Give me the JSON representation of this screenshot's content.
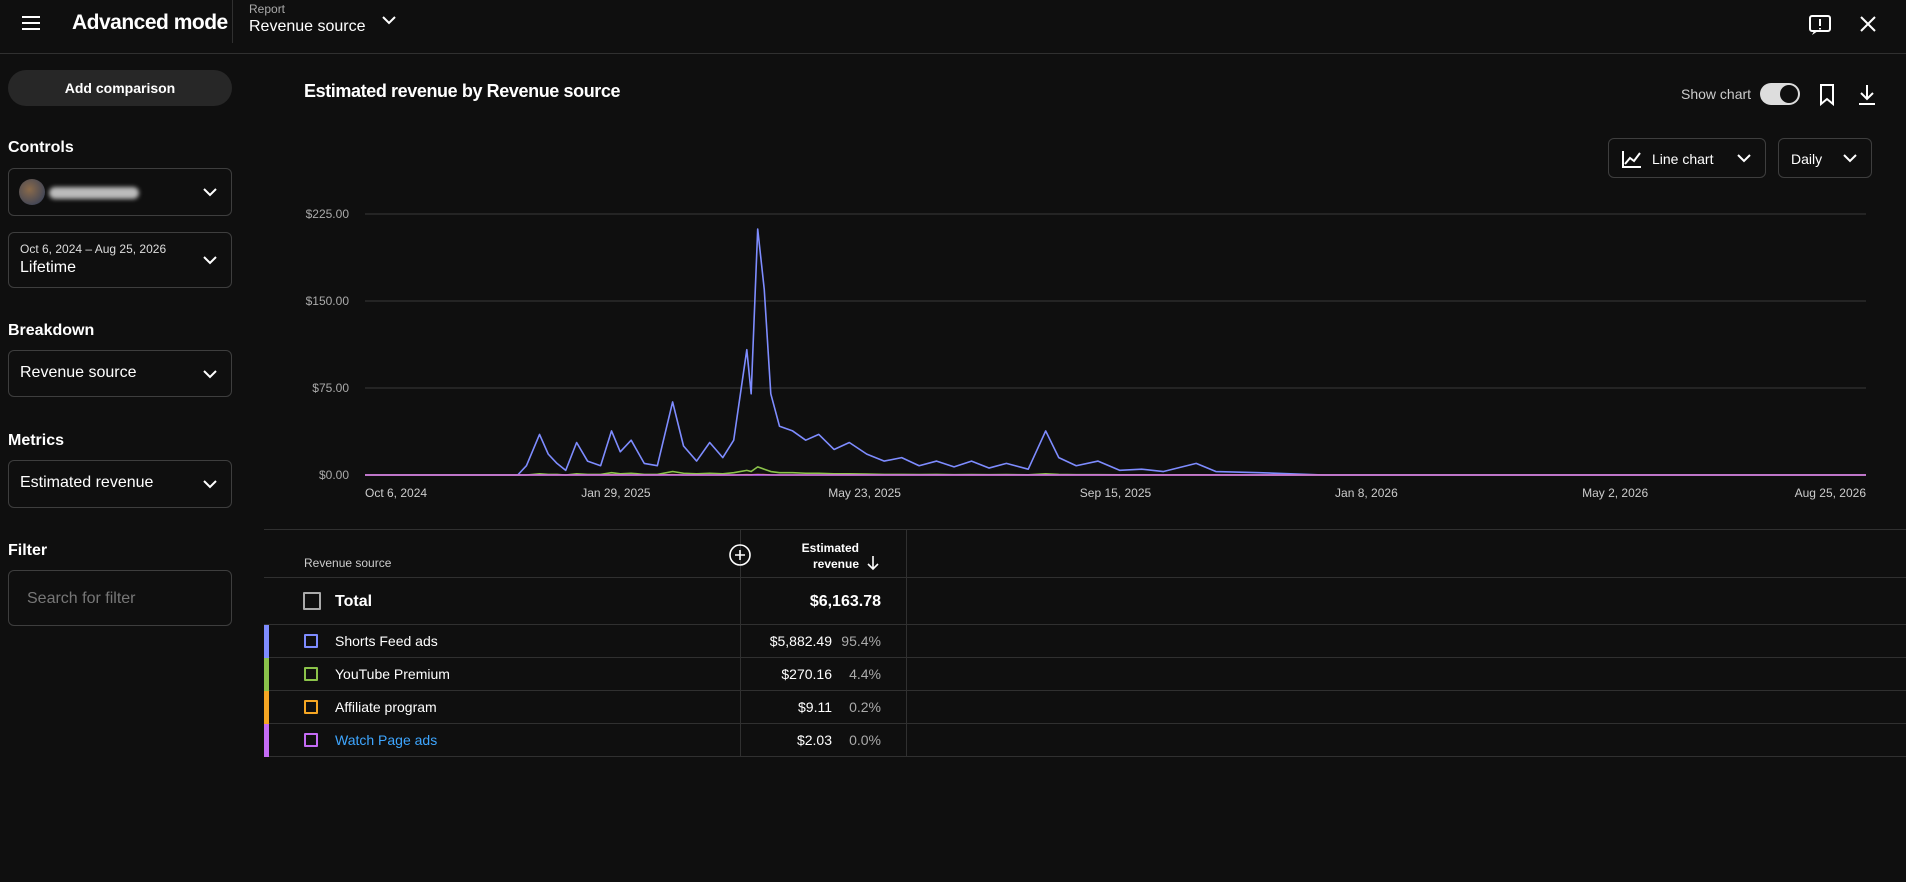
{
  "header": {
    "title": "Advanced mode",
    "report_label": "Report",
    "report": "Revenue source"
  },
  "sidebar": {
    "add_comparison": "Add comparison",
    "controls_label": "Controls",
    "date_range": "Oct 6, 2024 – Aug 25, 2026",
    "date_preset": "Lifetime",
    "breakdown_label": "Breakdown",
    "breakdown": "Revenue source",
    "metrics_label": "Metrics",
    "metric": "Estimated revenue",
    "filter_label": "Filter",
    "filter_placeholder": "Search for filter"
  },
  "toolbar": {
    "show_chart": "Show chart",
    "chart_type": "Line chart",
    "interval": "Daily"
  },
  "chart_data": {
    "type": "line",
    "title": "Estimated revenue by Revenue source",
    "x": [
      "2024-10-06",
      "2024-12-15",
      "2024-12-19",
      "2024-12-25",
      "2024-12-29",
      "2025-01-02",
      "2025-01-06",
      "2025-01-11",
      "2025-01-16",
      "2025-01-22",
      "2025-01-27",
      "2025-01-31",
      "2025-02-05",
      "2025-02-11",
      "2025-02-17",
      "2025-02-24",
      "2025-03-01",
      "2025-03-07",
      "2025-03-13",
      "2025-03-19",
      "2025-03-24",
      "2025-03-30",
      "2025-04-01",
      "2025-04-04",
      "2025-04-07",
      "2025-04-10",
      "2025-04-14",
      "2025-04-20",
      "2025-04-26",
      "2025-05-02",
      "2025-05-09",
      "2025-05-16",
      "2025-05-24",
      "2025-06-01",
      "2025-06-09",
      "2025-06-17",
      "2025-06-25",
      "2025-07-03",
      "2025-07-11",
      "2025-07-19",
      "2025-07-27",
      "2025-08-06",
      "2025-08-14",
      "2025-08-20",
      "2025-08-28",
      "2025-09-07",
      "2025-09-17",
      "2025-09-27",
      "2025-10-07",
      "2025-10-22",
      "2025-10-31",
      "2025-11-20",
      "2025-12-20",
      "2026-08-25"
    ],
    "series": [
      {
        "name": "Shorts Feed ads",
        "color": "#7e8cff",
        "values": [
          0,
          0,
          8,
          35,
          18,
          10,
          4,
          28,
          12,
          8,
          38,
          20,
          30,
          10,
          8,
          63,
          25,
          12,
          28,
          15,
          30,
          108,
          70,
          212,
          160,
          70,
          42,
          38,
          30,
          35,
          22,
          28,
          18,
          12,
          15,
          8,
          12,
          7,
          12,
          6,
          10,
          5,
          38,
          15,
          8,
          12,
          4,
          5,
          3,
          10,
          3,
          2,
          0,
          0
        ]
      },
      {
        "name": "YouTube Premium",
        "color": "#8bc34a",
        "values": [
          0,
          0,
          0,
          1,
          0.5,
          0.5,
          0,
          1,
          0.5,
          0.5,
          2,
          1,
          1.5,
          0.5,
          0.5,
          3,
          1.5,
          1,
          1.5,
          1,
          2,
          4,
          3,
          7,
          5,
          3,
          2,
          2,
          1.5,
          1.5,
          1,
          1,
          0.8,
          0.5,
          0.5,
          0.4,
          0.5,
          0.3,
          0.4,
          0.3,
          0.4,
          0.2,
          1,
          0.5,
          0.3,
          0.3,
          0.2,
          0.2,
          0.1,
          0.2,
          0.1,
          0,
          0,
          0
        ]
      },
      {
        "name": "Affiliate program",
        "color": "#f5a623",
        "values": [
          0,
          0,
          0,
          0,
          0,
          0,
          0,
          0,
          0,
          0,
          0.2,
          0,
          0,
          0,
          0,
          0.3,
          0,
          0,
          0,
          0,
          0,
          0.3,
          0.2,
          0.4,
          0.3,
          0.1,
          0,
          0,
          0,
          0,
          0,
          0,
          0,
          0,
          0,
          0,
          0,
          0,
          0,
          0,
          0,
          0,
          0,
          0,
          0,
          0,
          0,
          0,
          0,
          0,
          0,
          0,
          0,
          0
        ]
      },
      {
        "name": "Watch Page ads",
        "color": "#c46bf5",
        "values": [
          0,
          0,
          0,
          0,
          0,
          0,
          0,
          0,
          0,
          0,
          0,
          0,
          0,
          0,
          0,
          0,
          0,
          0,
          0,
          0,
          0,
          0,
          0,
          0.2,
          0,
          0,
          0,
          0,
          0,
          0,
          0,
          0,
          0,
          0,
          0,
          0,
          0,
          0,
          0,
          0,
          0,
          0,
          0,
          0,
          0,
          0,
          0,
          0,
          0,
          0,
          0,
          0,
          0,
          0
        ]
      }
    ],
    "xlim": [
      "2024-10-06",
      "2026-08-25"
    ],
    "xticks": [
      {
        "value": "2024-10-06",
        "label": "Oct 6, 2024"
      },
      {
        "value": "2025-01-29",
        "label": "Jan 29, 2025"
      },
      {
        "value": "2025-05-23",
        "label": "May 23, 2025"
      },
      {
        "value": "2025-09-15",
        "label": "Sep 15, 2025"
      },
      {
        "value": "2026-01-08",
        "label": "Jan 8, 2026"
      },
      {
        "value": "2026-05-02",
        "label": "May 2, 2026"
      },
      {
        "value": "2026-08-25",
        "label": "Aug 25, 2026"
      }
    ],
    "ylim": [
      0,
      225
    ],
    "yticks": [
      {
        "value": 0,
        "label": "$0.00"
      },
      {
        "value": 75,
        "label": "$75.00"
      },
      {
        "value": 150,
        "label": "$150.00"
      },
      {
        "value": 225,
        "label": "$225.00"
      }
    ],
    "grid": true
  },
  "table": {
    "header_dimension": "Revenue source",
    "header_metric": "Estimated revenue",
    "total_label": "Total",
    "total_value": "$6,163.78",
    "rows": [
      {
        "name": "Shorts Feed ads",
        "value": "$5,882.49",
        "share": "95.4%"
      },
      {
        "name": "YouTube Premium",
        "value": "$270.16",
        "share": "4.4%"
      },
      {
        "name": "Affiliate program",
        "value": "$9.11",
        "share": "0.2%"
      },
      {
        "name": "Watch Page ads",
        "value": "$2.03",
        "share": "0.0%"
      }
    ]
  }
}
